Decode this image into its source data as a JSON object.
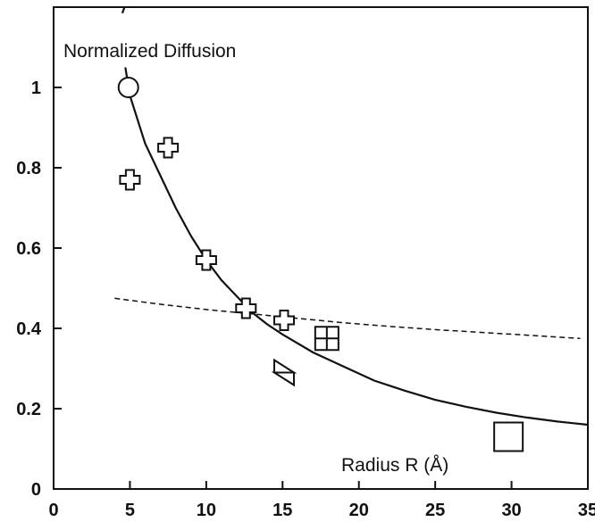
{
  "chart_data": {
    "type": "scatter",
    "title": "Normalized Diffusion",
    "xlabel": "Radius R (Å)",
    "ylabel": "",
    "xlim": [
      0,
      35
    ],
    "ylim": [
      0,
      1.2
    ],
    "x_ticks": [
      0,
      5,
      10,
      15,
      20,
      25,
      30,
      35
    ],
    "y_ticks": [
      0,
      0.2,
      0.4,
      0.6,
      0.8,
      1
    ],
    "x_tick_labels": [
      "0",
      "5",
      "10",
      "15",
      "20",
      "25",
      "30",
      "35"
    ],
    "y_tick_labels": [
      "0",
      "0.2",
      "0.4",
      "0.6",
      "0.8",
      "1"
    ],
    "grid": false,
    "points": [
      {
        "marker": "circle",
        "x": 4.9,
        "y": 1.0
      },
      {
        "marker": "cross",
        "x": 5.0,
        "y": 0.77
      },
      {
        "marker": "cross",
        "x": 7.5,
        "y": 0.85
      },
      {
        "marker": "cross",
        "x": 10.0,
        "y": 0.57
      },
      {
        "marker": "cross",
        "x": 12.6,
        "y": 0.45
      },
      {
        "marker": "cross",
        "x": 15.1,
        "y": 0.42
      },
      {
        "marker": "square-cross",
        "x": 17.9,
        "y": 0.375
      },
      {
        "marker": "bowtie",
        "x": 15.1,
        "y": 0.29
      },
      {
        "marker": "square",
        "x": 29.8,
        "y": 0.13
      }
    ],
    "curves": [
      {
        "style": "solid",
        "x": [
          4.7,
          5,
          6,
          7,
          8,
          9,
          10,
          11,
          12,
          13,
          14,
          15,
          17,
          19,
          21,
          23,
          25,
          27,
          29,
          31,
          33,
          35
        ],
        "y": [
          1.05,
          0.98,
          0.86,
          0.78,
          0.7,
          0.63,
          0.57,
          0.52,
          0.48,
          0.44,
          0.41,
          0.385,
          0.34,
          0.305,
          0.27,
          0.245,
          0.222,
          0.205,
          0.19,
          0.178,
          0.168,
          0.16
        ]
      },
      {
        "style": "solid",
        "x": [
          4.5,
          4.65
        ],
        "y": [
          1.185,
          1.2
        ]
      },
      {
        "style": "dashed",
        "x": [
          4,
          7,
          10,
          13,
          16,
          19,
          22,
          25,
          28,
          31,
          34.5
        ],
        "y": [
          0.475,
          0.46,
          0.447,
          0.436,
          0.425,
          0.414,
          0.405,
          0.397,
          0.39,
          0.383,
          0.375
        ]
      }
    ]
  }
}
